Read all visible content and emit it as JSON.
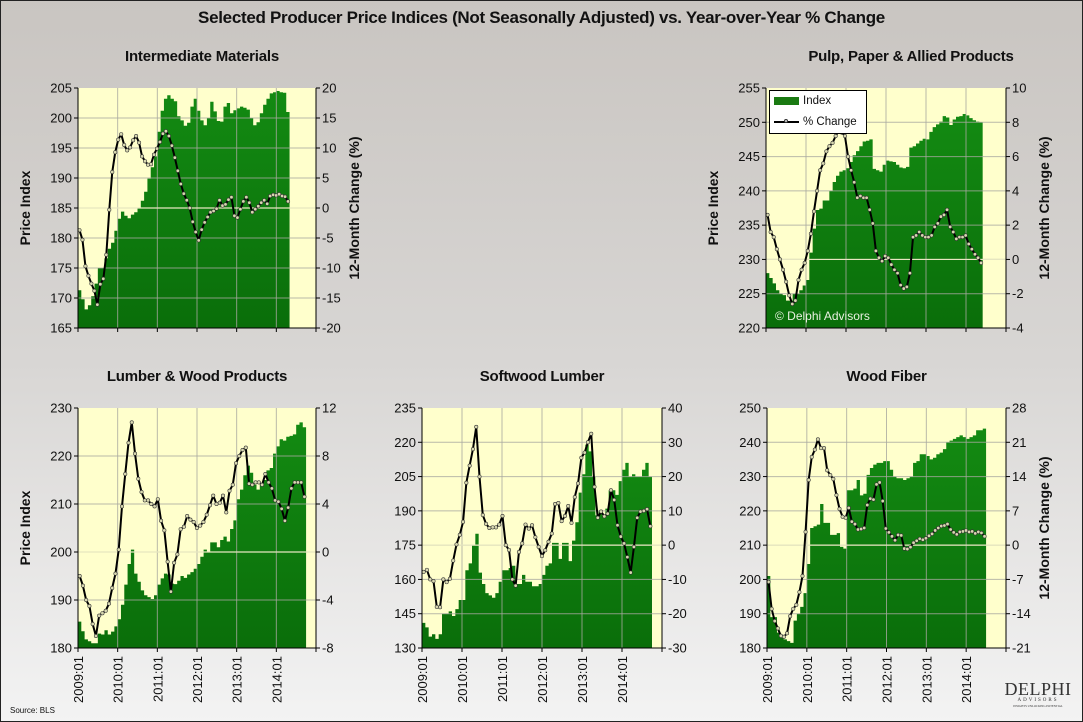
{
  "page": {
    "title": "Selected Producer Price Indices (Not Seasonally Adjusted) vs. Year-over-Year % Change",
    "source": "Source:  BLS",
    "copyright": "© Delphi Advisors",
    "logo": {
      "main": "DELPHI",
      "sub": "ADVISORS",
      "tagline": "INSIGHTS UNLOCKING POTENTIAL"
    },
    "legend": {
      "index_label": "Index",
      "change_label": "% Change"
    },
    "colors": {
      "index_fill": "#0b7a0b",
      "plot_bg": "#ffffcc",
      "line": "#000000",
      "marker_fill": "#d8d8b0",
      "zero_line": "#e6e6c0"
    }
  },
  "chart_data": [
    {
      "id": "intermediate",
      "type": "area",
      "title": "Intermediate Materials",
      "ylabel": "Price Index",
      "y2label": "12-Month Change (%)",
      "ylim": [
        165,
        205
      ],
      "yticks": [
        165,
        170,
        175,
        180,
        185,
        190,
        195,
        200,
        205
      ],
      "y2lim": [
        -20,
        20
      ],
      "y2ticks": [
        -20,
        -15,
        -10,
        -5,
        0,
        5,
        10,
        15,
        20
      ],
      "x_start": "2009:01",
      "xticks": [],
      "show_ylabel": true,
      "show_y2label": true,
      "series": [
        {
          "name": "Index",
          "values": [
            171.3,
            169.8,
            168.1,
            168.8,
            170.3,
            172.4,
            175.0,
            175.0,
            176.6,
            178.2,
            179.2,
            181.2,
            183.2,
            184.4,
            183.7,
            183.3,
            183.9,
            184.3,
            185.0,
            186.2,
            187.7,
            189.9,
            191.8,
            193.6,
            197.7,
            201.2,
            203.2,
            203.8,
            203.2,
            202.8,
            200.3,
            199.6,
            198.7,
            199.2,
            201.9,
            203.2,
            201.2,
            199.6,
            198.8,
            200.0,
            202.7,
            201.1,
            199.5,
            199.4,
            201.9,
            202.5,
            200.8,
            201.3,
            201.6,
            201.9,
            201.7,
            201.4,
            200.0,
            198.8,
            199.3,
            200.8,
            202.2,
            203.2,
            204.1,
            204.3,
            204.5,
            204.3,
            204.2,
            201.0
          ]
        },
        {
          "name": "% Change",
          "values": [
            -3.7,
            -5.3,
            -9.7,
            -11.3,
            -12.6,
            -13.8,
            -16.1,
            -12.7,
            -11.8,
            -7.8,
            -0.3,
            6.0,
            9.3,
            11.4,
            12.3,
            10.5,
            9.6,
            10.1,
            11.3,
            12.0,
            10.9,
            8.6,
            7.8,
            7.2,
            7.3,
            8.9,
            9.9,
            11.0,
            12.4,
            12.8,
            12.0,
            10.4,
            8.4,
            6.2,
            4.0,
            2.4,
            1.3,
            0.0,
            -2.3,
            -4.0,
            -5.4,
            -3.6,
            -2.4,
            -1.5,
            -0.7,
            -0.5,
            -0.1,
            1.3,
            0.4,
            0.6,
            1.4,
            1.8,
            -1.3,
            -1.6,
            -0.2,
            1.1,
            1.8,
            0.9,
            -0.7,
            -0.2,
            0.3,
            0.9,
            1.3,
            0.7,
            2.0,
            2.2,
            2.1,
            2.3,
            2.0,
            1.9,
            1.1
          ]
        }
      ]
    },
    {
      "id": "pulp",
      "type": "area",
      "title": "Pulp, Paper & Allied Products",
      "ylabel": "Price Index",
      "y2label": "12-Month Change (%)",
      "ylim": [
        220,
        255
      ],
      "yticks": [
        220,
        225,
        230,
        235,
        240,
        245,
        250,
        255
      ],
      "y2lim": [
        -4,
        10
      ],
      "y2ticks": [
        -4,
        -2,
        0,
        2,
        4,
        6,
        8,
        10
      ],
      "x_start": "2009:01",
      "xticks": [],
      "show_ylabel": true,
      "show_y2label": true,
      "series": [
        {
          "name": "Index",
          "values": [
            228.0,
            227.3,
            226.5,
            225.5,
            225.0,
            224.8,
            224.0,
            224.0,
            225.0,
            225.0,
            225.5,
            226.2,
            227.0,
            231.0,
            234.5,
            237.2,
            237.4,
            238.6,
            238.6,
            240.0,
            241.3,
            242.2,
            242.8,
            243.0,
            243.3,
            244.2,
            245.2,
            245.8,
            246.5,
            247.2,
            247.3,
            247.5,
            243.2,
            243.0,
            242.8,
            243.8,
            244.4,
            244.3,
            244.2,
            243.8,
            243.4,
            243.3,
            243.5,
            246.3,
            246.5,
            246.9,
            247.3,
            247.6,
            247.5,
            248.6,
            249.3,
            249.7,
            250.1,
            250.9,
            250.7,
            249.6,
            250.4,
            250.8,
            250.9,
            251.2,
            251.0,
            250.6,
            250.3,
            250.1,
            250.0
          ]
        },
        {
          "name": "% Change",
          "values": [
            2.6,
            1.6,
            1.3,
            0.6,
            0.0,
            -0.6,
            -1.3,
            -2.1,
            -2.6,
            -2.4,
            -1.2,
            -0.6,
            -0.2,
            0.5,
            1.5,
            2.8,
            4.0,
            5.2,
            5.6,
            6.3,
            6.6,
            6.8,
            7.2,
            7.5,
            7.4,
            7.2,
            6.0,
            5.2,
            4.5,
            3.6,
            3.7,
            3.6,
            3.6,
            2.9,
            2.1,
            0.5,
            0.1,
            -0.1,
            0.2,
            0.1,
            -0.3,
            -0.6,
            -0.8,
            -1.5,
            -1.7,
            -1.6,
            -0.8,
            1.3,
            1.4,
            1.6,
            1.4,
            1.3,
            1.3,
            1.4,
            1.9,
            2.1,
            2.5,
            2.6,
            2.9,
            1.9,
            1.6,
            1.2,
            1.3,
            1.3,
            1.4,
            0.9,
            0.6,
            0.3,
            0.1,
            -0.2
          ]
        }
      ]
    },
    {
      "id": "lumber",
      "type": "area",
      "title": "Lumber & Wood Products",
      "ylabel": "Price Index",
      "y2label": "",
      "ylim": [
        180,
        230
      ],
      "yticks": [
        180,
        190,
        200,
        210,
        220,
        230
      ],
      "y2lim": [
        -8,
        12
      ],
      "y2ticks": [
        -8,
        -4,
        0,
        4,
        8,
        12
      ],
      "x_start": "2009:01",
      "xticks": [
        "2009:01",
        "2010:01",
        "2011:01",
        "2012:01",
        "2013:01",
        "2014:01"
      ],
      "show_ylabel": true,
      "show_y2label": false,
      "series": [
        {
          "name": "Index",
          "values": [
            185.5,
            183.5,
            181.8,
            181.4,
            181.0,
            181.0,
            183.0,
            182.8,
            183.7,
            182.8,
            183.4,
            184.5,
            186.0,
            189.0,
            193.2,
            197.5,
            200.5,
            195.5,
            193.8,
            192.0,
            191.0,
            190.6,
            190.2,
            191.0,
            193.2,
            194.5,
            195.5,
            195.3,
            193.4,
            193.3,
            194.0,
            195.0,
            194.6,
            195.3,
            195.8,
            196.5,
            197.5,
            199.0,
            200.5,
            200.0,
            202.0,
            202.0,
            201.0,
            202.5,
            203.2,
            202.2,
            204.8,
            206.6,
            211.0,
            213.0,
            216.0,
            218.0,
            216.5,
            214.0,
            213.0,
            214.0,
            215.0,
            217.0,
            217.5,
            220.5,
            222.0,
            223.5,
            223.2,
            224.0,
            224.2,
            224.5,
            226.5,
            227.0,
            226.0
          ]
        },
        {
          "name": "% Change",
          "values": [
            -2.0,
            -2.8,
            -4.0,
            -4.5,
            -6.0,
            -7.0,
            -5.3,
            -5.1,
            -4.9,
            -4.3,
            -3.0,
            -1.8,
            0.2,
            3.8,
            6.5,
            9.1,
            10.8,
            8.2,
            6.1,
            5.0,
            4.3,
            4.3,
            4.0,
            3.8,
            4.4,
            2.6,
            1.8,
            -0.8,
            -3.3,
            -0.9,
            -0.2,
            1.9,
            2.1,
            3.0,
            2.7,
            2.5,
            2.0,
            2.2,
            2.5,
            3.1,
            3.9,
            4.7,
            4.0,
            4.1,
            4.7,
            3.3,
            5.1,
            5.6,
            7.4,
            8.0,
            8.5,
            8.7,
            5.7,
            5.6,
            5.8,
            5.8,
            5.6,
            6.5,
            5.8,
            5.3,
            4.3,
            4.2,
            3.6,
            2.6,
            3.7,
            5.3,
            5.8,
            5.8,
            5.8,
            4.6
          ]
        }
      ]
    },
    {
      "id": "softwood",
      "type": "area",
      "title": "Softwood Lumber",
      "ylabel": "",
      "y2label": "",
      "ylim": [
        130,
        235
      ],
      "yticks": [
        130,
        145,
        160,
        175,
        190,
        205,
        220,
        235
      ],
      "y2lim": [
        -30,
        40
      ],
      "y2ticks": [
        -30,
        -20,
        -10,
        0,
        10,
        20,
        30,
        40
      ],
      "x_start": "2009:01",
      "xticks": [
        "2009:01",
        "2010:01",
        "2011:01",
        "2012:01",
        "2013:01",
        "2014:01"
      ],
      "show_ylabel": false,
      "show_y2label": false,
      "series": [
        {
          "name": "Index",
          "values": [
            141.0,
            139.0,
            135.0,
            136.0,
            134.0,
            136.0,
            145.0,
            145.0,
            146.0,
            144.0,
            147.0,
            151.0,
            151.0,
            164.0,
            167.0,
            175.0,
            180.0,
            163.0,
            158.0,
            154.0,
            153.0,
            152.0,
            154.0,
            159.0,
            164.0,
            164.0,
            165.0,
            166.0,
            158.0,
            158.0,
            162.0,
            159.0,
            159.0,
            157.0,
            157.0,
            158.0,
            162.0,
            166.0,
            167.0,
            176.0,
            176.0,
            169.0,
            176.0,
            176.0,
            168.0,
            177.0,
            185.0,
            198.0,
            206.0,
            219.0,
            216.0,
            205.0,
            188.0,
            190.0,
            188.0,
            191.0,
            199.0,
            199.0,
            197.0,
            203.0,
            208.0,
            211.0,
            205.0,
            206.0,
            205.0,
            205.0,
            208.0,
            211.0,
            205.0
          ]
        },
        {
          "name": "% Change",
          "values": [
            -7.8,
            -7.2,
            -10.0,
            -10.5,
            -18.0,
            -18.1,
            -10.0,
            -10.8,
            -9.8,
            -4.5,
            0.2,
            3.0,
            6.8,
            18.2,
            23.2,
            28.0,
            34.5,
            20.0,
            8.8,
            6.2,
            5.0,
            5.2,
            5.2,
            6.0,
            8.5,
            0.0,
            -1.4,
            -10.0,
            -11.8,
            -2.0,
            0.5,
            6.0,
            4.8,
            5.8,
            2.3,
            -0.5,
            -3.2,
            -1.5,
            1.0,
            3.4,
            12.0,
            12.3,
            7.0,
            8.5,
            11.4,
            6.5,
            14.0,
            18.0,
            25.5,
            27.0,
            30.0,
            32.5,
            17.0,
            8.0,
            9.8,
            8.4,
            9.2,
            16.0,
            13.2,
            5.8,
            2.5,
            0.5,
            -3.5,
            -8.0,
            -0.5,
            8.0,
            9.8,
            10.0,
            10.5,
            5.5
          ]
        }
      ]
    },
    {
      "id": "woodfiber",
      "type": "area",
      "title": "Wood Fiber",
      "ylabel": "",
      "y2label": "12-Month Change (%)",
      "ylim": [
        180,
        250
      ],
      "yticks": [
        180,
        190,
        200,
        210,
        220,
        230,
        240,
        250
      ],
      "y2lim": [
        -21,
        28
      ],
      "y2ticks": [
        -21,
        -14,
        -7,
        0,
        7,
        14,
        21,
        28
      ],
      "x_start": "2009:01",
      "xticks": [
        "2009:01",
        "2010:01",
        "2011:01",
        "2012:01",
        "2013:01",
        "2014:01"
      ],
      "show_ylabel": false,
      "show_y2label": true,
      "series": [
        {
          "name": "Index",
          "values": [
            201.0,
            189.0,
            189.0,
            184.5,
            183.0,
            182.5,
            182.0,
            181.5,
            188.0,
            190.0,
            192.0,
            196.0,
            204.5,
            215.0,
            215.5,
            216.0,
            222.0,
            216.5,
            216.5,
            213.0,
            213.0,
            213.5,
            209.5,
            209.0,
            226.0,
            226.0,
            226.5,
            229.0,
            224.5,
            225.0,
            230.5,
            232.5,
            233.5,
            234.0,
            234.0,
            234.5,
            234.5,
            232.0,
            230.0,
            229.5,
            229.5,
            229.0,
            229.5,
            230.0,
            234.0,
            234.5,
            236.5,
            236.5,
            236.0,
            235.0,
            235.5,
            236.5,
            237.0,
            238.0,
            240.0,
            240.5,
            241.0,
            241.5,
            242.0,
            241.5,
            241.0,
            241.5,
            242.0,
            243.5,
            243.5,
            244.0
          ]
        },
        {
          "name": "% Change",
          "values": [
            -7.5,
            -13.0,
            -15.5,
            -17.0,
            -18.5,
            -18.7,
            -18.0,
            -14.5,
            -13.0,
            -12.2,
            -9.6,
            -6.3,
            2.7,
            13.3,
            18.0,
            19.5,
            21.6,
            19.8,
            19.8,
            15.3,
            14.3,
            13.5,
            10.2,
            7.4,
            5.8,
            5.6,
            7.6,
            4.8,
            4.3,
            3.2,
            3.3,
            3.5,
            8.2,
            9.5,
            9.3,
            12.4,
            12.8,
            9.0,
            3.4,
            2.6,
            1.8,
            1.0,
            2.1,
            2.0,
            -0.7,
            -0.8,
            -0.4,
            0.5,
            0.9,
            1.3,
            1.1,
            1.4,
            1.9,
            2.3,
            3.0,
            3.5,
            3.9,
            4.0,
            4.3,
            3.2,
            2.6,
            2.2,
            2.7,
            2.8,
            3.0,
            2.7,
            2.8,
            2.4,
            2.7,
            2.5,
            1.8
          ]
        }
      ]
    }
  ]
}
